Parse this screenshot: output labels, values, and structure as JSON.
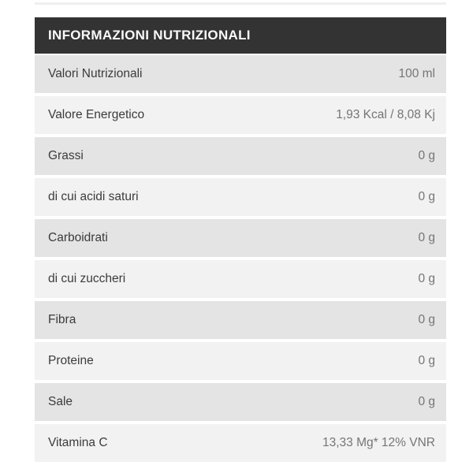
{
  "table": {
    "header": {
      "title": "INFORMAZIONI NUTRIZIONALI"
    },
    "rows": [
      {
        "label": "Valori Nutrizionali",
        "value": "100 ml"
      },
      {
        "label": "Valore Energetico",
        "value": "1,93 Kcal / 8,08 Kj"
      },
      {
        "label": "Grassi",
        "value": "0 g"
      },
      {
        "label": "di cui acidi saturi",
        "value": "0 g"
      },
      {
        "label": "Carboidrati",
        "value": "0 g"
      },
      {
        "label": "di cui zuccheri",
        "value": "0 g"
      },
      {
        "label": "Fibra",
        "value": "0 g"
      },
      {
        "label": "Proteine",
        "value": "0 g"
      },
      {
        "label": "Sale",
        "value": "0 g"
      },
      {
        "label": "Vitamina C",
        "value": "13,33 Mg* 12% VNR"
      }
    ]
  },
  "colors": {
    "header_bg": "#333333",
    "header_text": "#fafafa",
    "row_dark": "#e4e4e4",
    "row_light": "#f2f2f2",
    "label": "#3b3b3b",
    "value": "#757575",
    "divider": "#efefef"
  }
}
